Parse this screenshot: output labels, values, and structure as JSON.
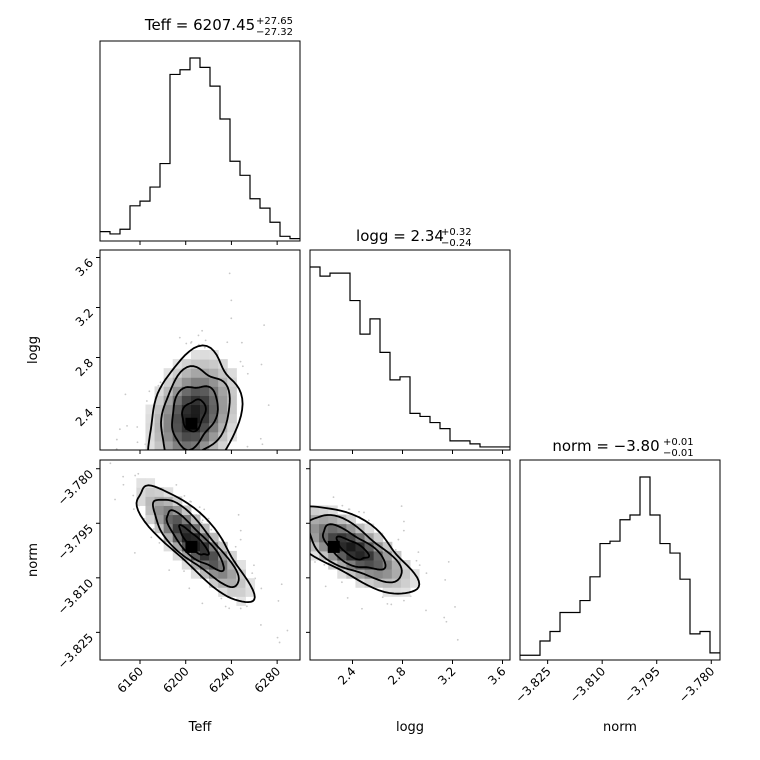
{
  "chart_data": {
    "type": "corner",
    "parameters": [
      "Teff",
      "logg",
      "norm"
    ],
    "titles": [
      {
        "param": "Teff",
        "main": "Teff = 6207.45",
        "upper": "+27.65",
        "lower": "−27.32"
      },
      {
        "param": "logg",
        "main": "logg = 2.34",
        "upper": "+0.32",
        "lower": "−0.24"
      },
      {
        "param": "norm",
        "main": "norm = −3.80",
        "upper": "+0.01",
        "lower": "−0.01"
      }
    ],
    "axes": {
      "Teff": {
        "range": [
          6125,
          6300
        ],
        "ticks": [
          6160,
          6200,
          6240,
          6280
        ],
        "tick_labels": [
          "6160",
          "6200",
          "6240",
          "6280"
        ],
        "label": "Teff"
      },
      "logg": {
        "range": [
          2.06,
          3.66
        ],
        "ticks": [
          2.4,
          2.8,
          3.2,
          3.6
        ],
        "tick_labels": [
          "2.4",
          "2.8",
          "3.2",
          "3.6"
        ],
        "label": "logg"
      },
      "norm": {
        "range": [
          -3.8326,
          -3.7776
        ],
        "ticks": [
          -3.825,
          -3.81,
          -3.795,
          -3.78
        ],
        "tick_labels": [
          "−3.825",
          "−3.810",
          "−3.795",
          "−3.780"
        ],
        "label": "norm"
      }
    },
    "histograms": {
      "Teff": {
        "bin_edges": [
          6125,
          6133.75,
          6142.5,
          6151.25,
          6160,
          6168.75,
          6177.5,
          6186.25,
          6195,
          6203.75,
          6212.5,
          6221.25,
          6230,
          6238.75,
          6247.5,
          6256.25,
          6265,
          6273.75,
          6282.5,
          6291.25,
          6300
        ],
        "counts": [
          4,
          3,
          5,
          15,
          17,
          23,
          33,
          71,
          73,
          78,
          74,
          66,
          52,
          34,
          28,
          18,
          14,
          8,
          2,
          1
        ]
      },
      "logg": {
        "bin_edges": [
          2.06,
          2.14,
          2.22,
          2.3,
          2.38,
          2.46,
          2.54,
          2.62,
          2.7,
          2.78,
          2.86,
          2.94,
          3.02,
          3.1,
          3.18,
          3.26,
          3.34,
          3.42,
          3.5,
          3.58,
          3.66
        ],
        "counts": [
          60,
          57,
          58,
          58,
          49,
          38,
          43,
          32,
          23,
          24,
          12,
          11,
          9,
          7,
          3,
          3,
          2,
          1,
          1,
          1
        ]
      },
      "norm": {
        "bin_edges": [
          -3.8326,
          -3.82985,
          -3.8271,
          -3.82435,
          -3.8216,
          -3.81885,
          -3.8161,
          -3.81335,
          -3.8106,
          -3.80785,
          -3.8051,
          -3.80235,
          -3.7996,
          -3.79685,
          -3.7941,
          -3.79135,
          -3.7886,
          -3.78585,
          -3.7831,
          -3.78035,
          -3.7776
        ],
        "counts": [
          2,
          2,
          8,
          12,
          20,
          20,
          25,
          35,
          49,
          50,
          59,
          61,
          77,
          61,
          49,
          45,
          34,
          11,
          12,
          3
        ]
      }
    },
    "contour_levels_sigma": [
      0.5,
      1,
      1.5,
      2
    ],
    "joint_distributions": [
      {
        "x": "Teff",
        "y": "logg",
        "mean": [
          6207,
          2.34
        ],
        "std": [
          20,
          0.25
        ],
        "correlation": 0.25,
        "peak": [
          6205,
          2.27
        ]
      },
      {
        "x": "Teff",
        "y": "norm",
        "mean": [
          6207,
          -3.8
        ],
        "std": [
          25,
          0.008
        ],
        "correlation": -0.85,
        "peak": [
          6205,
          -3.8015
        ]
      },
      {
        "x": "logg",
        "y": "norm",
        "mean": [
          2.4,
          -3.802
        ],
        "std": [
          0.25,
          0.006
        ],
        "correlation": -0.7,
        "peak": [
          2.25,
          -3.8015
        ]
      }
    ]
  }
}
